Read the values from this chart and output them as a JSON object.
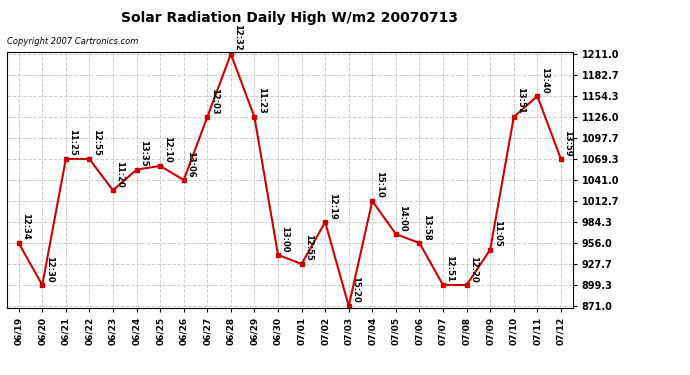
{
  "title": "Solar Radiation Daily High W/m2 20070713",
  "copyright": "Copyright 2007 Cartronics.com",
  "background_color": "#ffffff",
  "plot_background": "#ffffff",
  "grid_color": "#cccccc",
  "line_color": "#cc0000",
  "marker_color": "#cc0000",
  "dates": [
    "06/19",
    "06/20",
    "06/21",
    "06/22",
    "06/23",
    "06/24",
    "06/25",
    "06/26",
    "06/27",
    "06/28",
    "06/29",
    "06/30",
    "07/01",
    "07/02",
    "07/03",
    "07/04",
    "07/05",
    "07/06",
    "07/07",
    "07/08",
    "07/09",
    "07/10",
    "07/11",
    "07/12"
  ],
  "values": [
    956.0,
    899.3,
    1069.3,
    1069.3,
    1027.0,
    1055.0,
    1060.0,
    1041.0,
    1126.0,
    1211.0,
    1126.0,
    940.0,
    927.7,
    984.3,
    871.0,
    1012.7,
    968.0,
    956.0,
    899.3,
    899.3,
    947.0,
    1126.0,
    1154.3,
    1069.3
  ],
  "labels": [
    "12:34",
    "12:30",
    "11:25",
    "12:55",
    "11:20",
    "13:35",
    "12:10",
    "13:06",
    "12:03",
    "12:32",
    "11:23",
    "13:00",
    "12:55",
    "12:19",
    "15:20",
    "15:10",
    "14:00",
    "13:58",
    "12:51",
    "12:20",
    "11:05",
    "13:51",
    "13:40",
    "13:59"
  ],
  "ylim": [
    871.0,
    1211.0
  ],
  "yticks": [
    871.0,
    899.3,
    927.7,
    956.0,
    984.3,
    1012.7,
    1041.0,
    1069.3,
    1097.7,
    1126.0,
    1154.3,
    1182.7,
    1211.0
  ],
  "figsize": [
    6.9,
    3.75
  ],
  "dpi": 100
}
